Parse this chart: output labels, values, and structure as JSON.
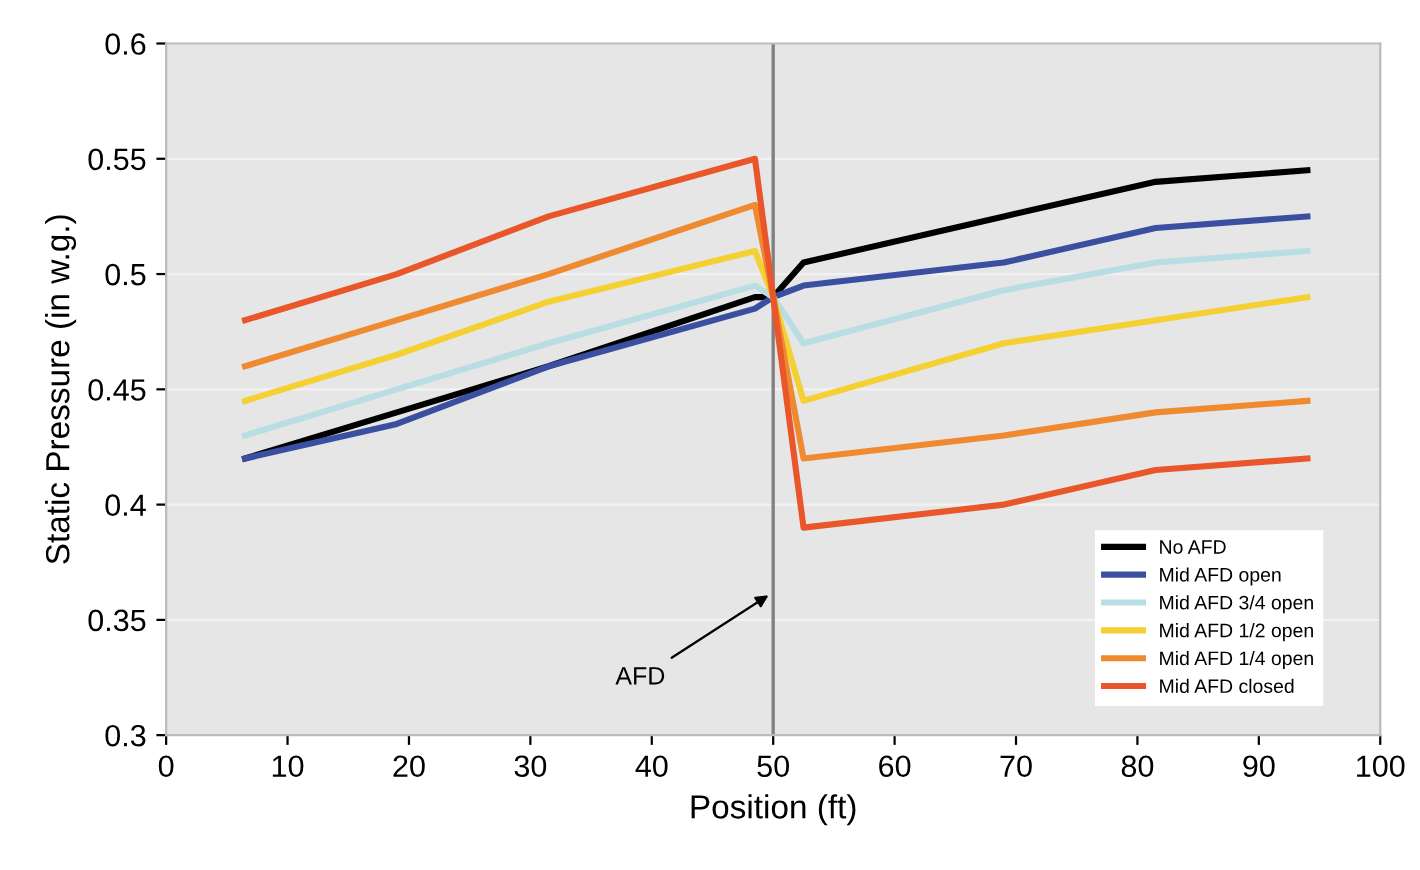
{
  "chart_data": {
    "type": "line",
    "xlabel": "Position (ft)",
    "ylabel": "Static Pressure (in w.g.)",
    "x": [
      6.5,
      19,
      31.5,
      48.5,
      50,
      52.5,
      69,
      81.5,
      94
    ],
    "series": [
      {
        "name": "No AFD",
        "color": "#000000",
        "values": [
          0.42,
          0.44,
          0.46,
          0.49,
          0.49,
          0.505,
          0.525,
          0.54,
          0.545
        ]
      },
      {
        "name": "Mid AFD open",
        "color": "#3b4fa0",
        "values": [
          0.42,
          0.435,
          0.46,
          0.485,
          0.49,
          0.495,
          0.505,
          0.52,
          0.525
        ]
      },
      {
        "name": "Mid AFD 3/4 open",
        "color": "#b8dde3",
        "values": [
          0.43,
          0.45,
          0.47,
          0.495,
          0.49,
          0.47,
          0.493,
          0.505,
          0.51
        ]
      },
      {
        "name": "Mid AFD 1/2 open",
        "color": "#f5d033",
        "values": [
          0.445,
          0.465,
          0.488,
          0.51,
          0.49,
          0.445,
          0.47,
          0.48,
          0.49
        ]
      },
      {
        "name": "Mid AFD 1/4 open",
        "color": "#f08a30",
        "values": [
          0.46,
          0.48,
          0.5,
          0.53,
          0.49,
          0.42,
          0.43,
          0.44,
          0.445
        ]
      },
      {
        "name": "Mid AFD closed",
        "color": "#e8562a",
        "values": [
          0.48,
          0.5,
          0.525,
          0.55,
          0.49,
          0.39,
          0.4,
          0.415,
          0.42
        ]
      }
    ],
    "xlim": [
      0,
      100
    ],
    "xticks": [
      0,
      10,
      20,
      30,
      40,
      50,
      60,
      70,
      80,
      90,
      100
    ],
    "ylim": [
      0.3,
      0.6
    ],
    "yticks": [
      0.3,
      0.35,
      0.4,
      0.45,
      0.5,
      0.55,
      0.6
    ],
    "ref_lines": [
      {
        "axis": "x",
        "value": 50,
        "color": "#808080"
      }
    ],
    "annotations": [
      {
        "text": "AFD",
        "x": 50,
        "y": 0.362
      }
    ],
    "grid": "y",
    "legend": "bottom right",
    "marker": "none",
    "line_style": "solid"
  }
}
